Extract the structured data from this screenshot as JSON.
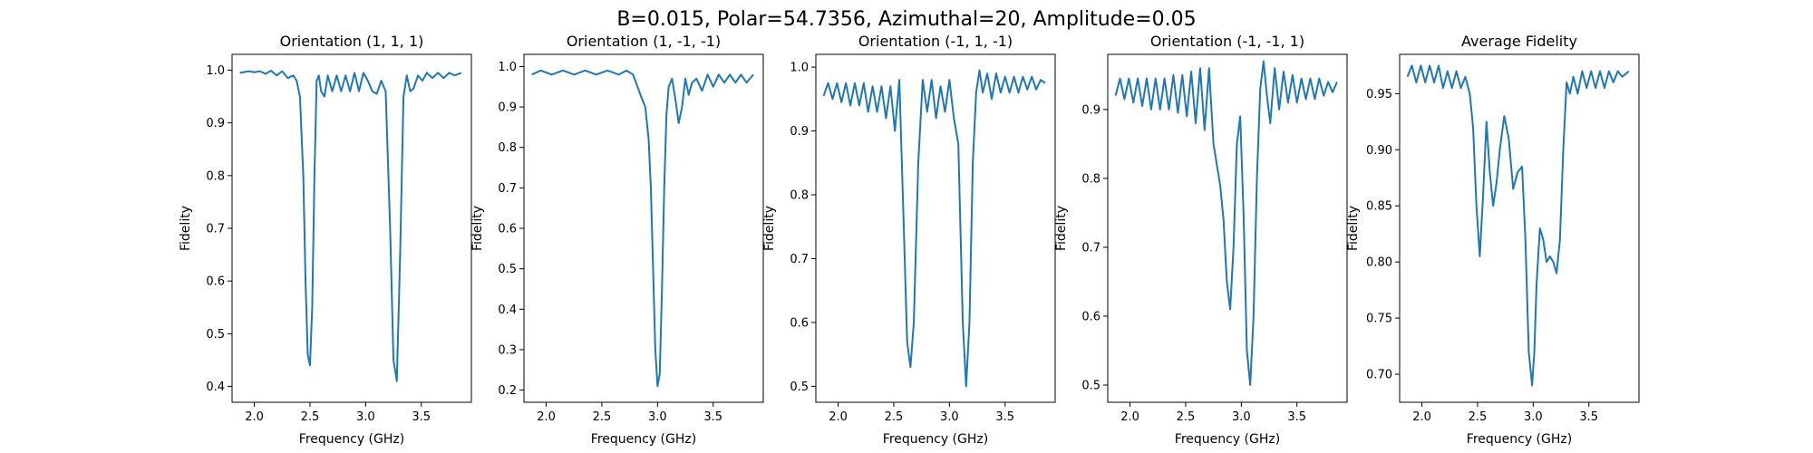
{
  "figure_title": "B=0.015, Polar=54.7356, Azimuthal=20, Amplitude=0.05",
  "colors": {
    "line": "#1f77b4",
    "axes": "#000000",
    "background": "#ffffff"
  },
  "chart_data": [
    {
      "type": "line",
      "title": "Orientation (1, 1, 1)",
      "xlabel": "Frequency (GHz)",
      "ylabel": "Fidelity",
      "xlim": [
        1.8,
        3.95
      ],
      "ylim": [
        0.37,
        1.03
      ],
      "xticks": [
        2.0,
        2.5,
        3.0,
        3.5
      ],
      "xtick_labels": [
        "2.0",
        "2.5",
        "3.0",
        "3.5"
      ],
      "yticks": [
        0.4,
        0.5,
        0.6,
        0.7,
        0.8,
        0.9,
        1.0
      ],
      "ytick_labels": [
        "0.4",
        "0.5",
        "0.6",
        "0.7",
        "0.8",
        "0.9",
        "1.0"
      ],
      "series": [
        {
          "x": [
            1.87,
            1.95,
            2.0,
            2.05,
            2.1,
            2.15,
            2.2,
            2.25,
            2.3,
            2.35,
            2.38,
            2.41,
            2.44,
            2.46,
            2.48,
            2.5,
            2.52,
            2.54,
            2.56,
            2.58,
            2.6,
            2.63,
            2.66,
            2.7,
            2.74,
            2.78,
            2.82,
            2.86,
            2.9,
            2.94,
            2.98,
            3.02,
            3.06,
            3.1,
            3.14,
            3.18,
            3.22,
            3.25,
            3.28,
            3.31,
            3.34,
            3.37,
            3.4,
            3.43,
            3.47,
            3.51,
            3.55,
            3.6,
            3.65,
            3.7,
            3.75,
            3.8,
            3.86
          ],
          "y": [
            0.995,
            0.998,
            0.996,
            0.998,
            0.993,
            0.999,
            0.99,
            0.998,
            0.985,
            0.99,
            0.98,
            0.95,
            0.8,
            0.6,
            0.46,
            0.44,
            0.55,
            0.8,
            0.98,
            0.99,
            0.96,
            0.95,
            0.99,
            0.96,
            0.99,
            0.96,
            0.99,
            0.96,
            0.995,
            0.96,
            0.995,
            0.98,
            0.96,
            0.955,
            0.98,
            0.96,
            0.7,
            0.45,
            0.41,
            0.65,
            0.95,
            0.99,
            0.96,
            0.965,
            0.99,
            0.98,
            0.995,
            0.985,
            0.995,
            0.985,
            0.995,
            0.99,
            0.995
          ]
        }
      ]
    },
    {
      "type": "line",
      "title": "Orientation (1, -1, -1)",
      "xlabel": "Frequency (GHz)",
      "ylabel": "Fidelity",
      "xlim": [
        1.8,
        3.95
      ],
      "ylim": [
        0.17,
        1.03
      ],
      "xticks": [
        2.0,
        2.5,
        3.0,
        3.5
      ],
      "xtick_labels": [
        "2.0",
        "2.5",
        "3.0",
        "3.5"
      ],
      "yticks": [
        0.2,
        0.3,
        0.4,
        0.5,
        0.6,
        0.7,
        0.8,
        0.9,
        1.0
      ],
      "ytick_labels": [
        "0.2",
        "0.3",
        "0.4",
        "0.5",
        "0.6",
        "0.7",
        "0.8",
        "0.9",
        "1.0"
      ],
      "series": [
        {
          "x": [
            1.87,
            1.95,
            2.05,
            2.15,
            2.25,
            2.35,
            2.45,
            2.55,
            2.65,
            2.72,
            2.78,
            2.82,
            2.86,
            2.89,
            2.92,
            2.94,
            2.96,
            2.98,
            3.0,
            3.02,
            3.04,
            3.06,
            3.08,
            3.1,
            3.13,
            3.16,
            3.19,
            3.22,
            3.25,
            3.28,
            3.31,
            3.35,
            3.4,
            3.45,
            3.5,
            3.55,
            3.6,
            3.65,
            3.7,
            3.75,
            3.8,
            3.86
          ],
          "y": [
            0.98,
            0.99,
            0.98,
            0.99,
            0.98,
            0.99,
            0.98,
            0.99,
            0.98,
            0.99,
            0.98,
            0.95,
            0.92,
            0.9,
            0.82,
            0.7,
            0.5,
            0.3,
            0.21,
            0.24,
            0.45,
            0.7,
            0.88,
            0.95,
            0.97,
            0.92,
            0.86,
            0.9,
            0.97,
            0.93,
            0.96,
            0.97,
            0.94,
            0.98,
            0.95,
            0.98,
            0.96,
            0.98,
            0.96,
            0.98,
            0.96,
            0.98
          ]
        }
      ]
    },
    {
      "type": "line",
      "title": "Orientation (-1, 1, -1)",
      "xlabel": "Frequency (GHz)",
      "ylabel": "Fidelity",
      "xlim": [
        1.8,
        3.95
      ],
      "ylim": [
        0.475,
        1.02
      ],
      "xticks": [
        2.0,
        2.5,
        3.0,
        3.5
      ],
      "xtick_labels": [
        "2.0",
        "2.5",
        "3.0",
        "3.5"
      ],
      "yticks": [
        0.5,
        0.6,
        0.7,
        0.8,
        0.9,
        1.0
      ],
      "ytick_labels": [
        "0.5",
        "0.6",
        "0.7",
        "0.8",
        "0.9",
        "1.0"
      ],
      "series": [
        {
          "x": [
            1.87,
            1.91,
            1.95,
            1.99,
            2.03,
            2.07,
            2.11,
            2.15,
            2.19,
            2.23,
            2.27,
            2.31,
            2.35,
            2.39,
            2.43,
            2.47,
            2.51,
            2.55,
            2.59,
            2.62,
            2.65,
            2.68,
            2.72,
            2.76,
            2.8,
            2.84,
            2.88,
            2.92,
            2.96,
            3.0,
            3.04,
            3.08,
            3.12,
            3.15,
            3.18,
            3.21,
            3.24,
            3.27,
            3.3,
            3.34,
            3.38,
            3.42,
            3.46,
            3.5,
            3.54,
            3.58,
            3.62,
            3.66,
            3.7,
            3.74,
            3.78,
            3.82,
            3.86
          ],
          "y": [
            0.955,
            0.975,
            0.95,
            0.975,
            0.945,
            0.975,
            0.94,
            0.975,
            0.94,
            0.975,
            0.93,
            0.97,
            0.93,
            0.97,
            0.92,
            0.97,
            0.9,
            0.98,
            0.75,
            0.57,
            0.53,
            0.6,
            0.85,
            0.98,
            0.93,
            0.98,
            0.92,
            0.97,
            0.93,
            0.98,
            0.92,
            0.88,
            0.6,
            0.5,
            0.6,
            0.85,
            0.96,
            0.995,
            0.96,
            0.99,
            0.95,
            0.99,
            0.96,
            0.985,
            0.96,
            0.985,
            0.96,
            0.985,
            0.965,
            0.985,
            0.965,
            0.98,
            0.975
          ]
        }
      ]
    },
    {
      "type": "line",
      "title": "Orientation (-1, -1, 1)",
      "xlabel": "Frequency (GHz)",
      "ylabel": "Fidelity",
      "xlim": [
        1.8,
        3.95
      ],
      "ylim": [
        0.475,
        0.98
      ],
      "xticks": [
        2.0,
        2.5,
        3.0,
        3.5
      ],
      "xtick_labels": [
        "2.0",
        "2.5",
        "3.0",
        "3.5"
      ],
      "yticks": [
        0.5,
        0.6,
        0.7,
        0.8,
        0.9
      ],
      "ytick_labels": [
        "0.5",
        "0.6",
        "0.7",
        "0.8",
        "0.9"
      ],
      "series": [
        {
          "x": [
            1.87,
            1.91,
            1.95,
            1.99,
            2.03,
            2.07,
            2.11,
            2.15,
            2.19,
            2.23,
            2.27,
            2.31,
            2.35,
            2.39,
            2.43,
            2.47,
            2.51,
            2.55,
            2.59,
            2.63,
            2.67,
            2.71,
            2.75,
            2.78,
            2.81,
            2.84,
            2.87,
            2.9,
            2.93,
            2.96,
            2.99,
            3.02,
            3.05,
            3.08,
            3.11,
            3.14,
            3.17,
            3.2,
            3.23,
            3.26,
            3.3,
            3.34,
            3.38,
            3.42,
            3.46,
            3.5,
            3.54,
            3.58,
            3.62,
            3.66,
            3.7,
            3.74,
            3.78,
            3.82,
            3.86
          ],
          "y": [
            0.92,
            0.945,
            0.915,
            0.945,
            0.91,
            0.945,
            0.905,
            0.945,
            0.9,
            0.945,
            0.9,
            0.945,
            0.9,
            0.95,
            0.895,
            0.95,
            0.89,
            0.955,
            0.88,
            0.96,
            0.87,
            0.96,
            0.85,
            0.82,
            0.79,
            0.74,
            0.65,
            0.61,
            0.7,
            0.85,
            0.89,
            0.75,
            0.55,
            0.5,
            0.6,
            0.8,
            0.93,
            0.97,
            0.92,
            0.88,
            0.96,
            0.9,
            0.955,
            0.91,
            0.95,
            0.91,
            0.945,
            0.915,
            0.945,
            0.915,
            0.945,
            0.92,
            0.94,
            0.925,
            0.94
          ]
        }
      ]
    },
    {
      "type": "line",
      "title": "Average Fidelity",
      "xlabel": "Frequency (GHz)",
      "ylabel": "Fidelity",
      "xlim": [
        1.8,
        3.95
      ],
      "ylim": [
        0.675,
        0.985
      ],
      "xticks": [
        2.0,
        2.5,
        3.0,
        3.5
      ],
      "xtick_labels": [
        "2.0",
        "2.5",
        "3.0",
        "3.5"
      ],
      "yticks": [
        0.7,
        0.75,
        0.8,
        0.85,
        0.9,
        0.95
      ],
      "ytick_labels": [
        "0.70",
        "0.75",
        "0.80",
        "0.85",
        "0.90",
        "0.95"
      ],
      "series": [
        {
          "x": [
            1.87,
            1.91,
            1.95,
            1.99,
            2.03,
            2.07,
            2.11,
            2.15,
            2.19,
            2.23,
            2.27,
            2.31,
            2.35,
            2.39,
            2.43,
            2.46,
            2.49,
            2.52,
            2.55,
            2.58,
            2.61,
            2.64,
            2.67,
            2.7,
            2.74,
            2.78,
            2.82,
            2.86,
            2.9,
            2.93,
            2.96,
            2.99,
            3.01,
            3.03,
            3.06,
            3.09,
            3.12,
            3.15,
            3.18,
            3.21,
            3.24,
            3.27,
            3.3,
            3.33,
            3.36,
            3.4,
            3.44,
            3.48,
            3.52,
            3.56,
            3.6,
            3.64,
            3.68,
            3.72,
            3.76,
            3.8,
            3.86
          ],
          "y": [
            0.965,
            0.975,
            0.96,
            0.975,
            0.96,
            0.975,
            0.96,
            0.975,
            0.955,
            0.97,
            0.955,
            0.97,
            0.955,
            0.965,
            0.95,
            0.92,
            0.85,
            0.805,
            0.86,
            0.925,
            0.88,
            0.85,
            0.87,
            0.9,
            0.93,
            0.91,
            0.865,
            0.88,
            0.885,
            0.82,
            0.72,
            0.69,
            0.72,
            0.78,
            0.83,
            0.82,
            0.8,
            0.805,
            0.8,
            0.79,
            0.82,
            0.9,
            0.96,
            0.95,
            0.965,
            0.95,
            0.97,
            0.955,
            0.97,
            0.955,
            0.97,
            0.955,
            0.97,
            0.96,
            0.97,
            0.965,
            0.97
          ]
        }
      ]
    }
  ]
}
